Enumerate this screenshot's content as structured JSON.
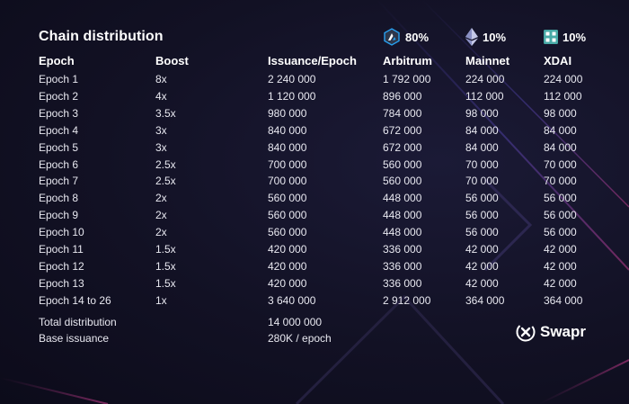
{
  "title": "Chain distribution",
  "chains": [
    {
      "pct": "80%",
      "icon": "arbitrum-icon",
      "color": "#28a0f0"
    },
    {
      "pct": "10%",
      "icon": "ethereum-icon",
      "color": "#c5c9e8"
    },
    {
      "pct": "10%",
      "icon": "xdai-icon",
      "color": "#48a9a6"
    }
  ],
  "columns": [
    "Epoch",
    "Boost",
    "Issuance/Epoch",
    "Arbitrum",
    "Mainnet",
    "XDAI"
  ],
  "rows": [
    [
      "Epoch 1",
      "8x",
      "2 240 000",
      "1 792 000",
      "224 000",
      "224 000"
    ],
    [
      "Epoch 2",
      "4x",
      "1 120 000",
      "896 000",
      "112 000",
      "112 000"
    ],
    [
      "Epoch 3",
      "3.5x",
      "980 000",
      "784 000",
      "98 000",
      "98 000"
    ],
    [
      "Epoch 4",
      "3x",
      "840 000",
      "672 000",
      "84 000",
      "84 000"
    ],
    [
      "Epoch 5",
      "3x",
      "840 000",
      "672 000",
      "84 000",
      "84 000"
    ],
    [
      "Epoch 6",
      "2.5x",
      "700 000",
      "560 000",
      "70 000",
      "70 000"
    ],
    [
      "Epoch 7",
      "2.5x",
      "700 000",
      "560 000",
      "70 000",
      "70 000"
    ],
    [
      "Epoch 8",
      "2x",
      "560 000",
      "448 000",
      "56 000",
      "56 000"
    ],
    [
      "Epoch 9",
      "2x",
      "560 000",
      "448 000",
      "56 000",
      "56 000"
    ],
    [
      "Epoch 10",
      "2x",
      "560 000",
      "448 000",
      "56 000",
      "56 000"
    ],
    [
      "Epoch 11",
      "1.5x",
      "420 000",
      "336 000",
      "42 000",
      "42 000"
    ],
    [
      "Epoch 12",
      "1.5x",
      "420 000",
      "336 000",
      "42 000",
      "42 000"
    ],
    [
      "Epoch 13",
      "1.5x",
      "420 000",
      "336 000",
      "42 000",
      "42 000"
    ],
    [
      "Epoch 14 to 26",
      "1x",
      "3 640 000",
      "2 912 000",
      "364 000",
      "364 000"
    ]
  ],
  "summary": {
    "total_label": "Total distribution",
    "total_value": "14 000 000",
    "base_label": "Base issuance",
    "base_value": "280K / epoch"
  },
  "brand": {
    "name": "Swapr",
    "logo_icon": "swapr-logo-icon"
  },
  "colors": {
    "background": "#121124",
    "accent_pink": "#b0307a",
    "accent_purple": "#6c4bd6"
  }
}
